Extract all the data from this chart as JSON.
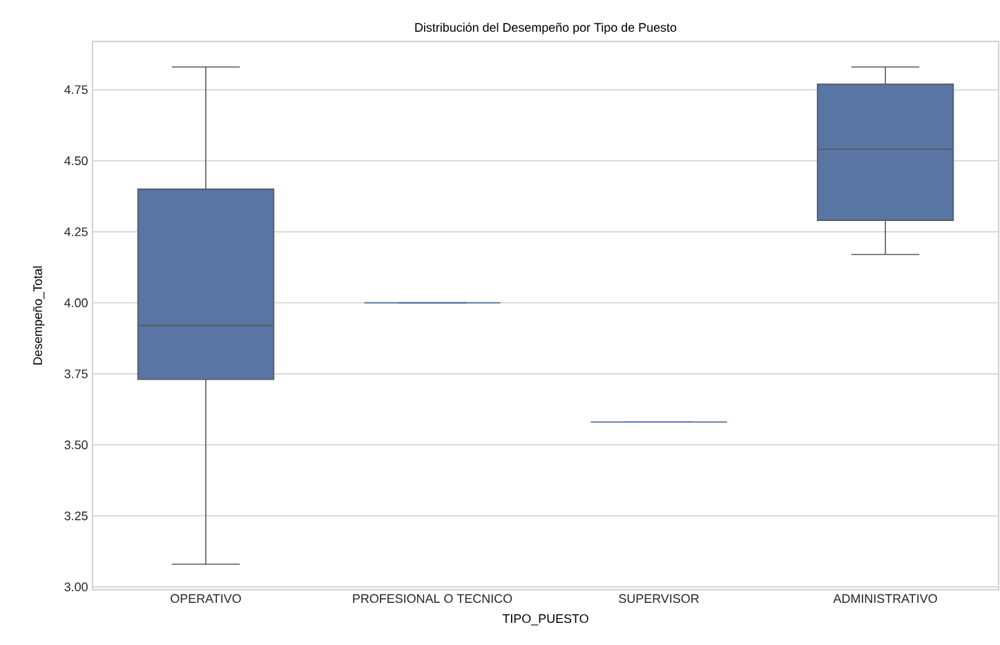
{
  "chart_data": {
    "type": "box",
    "title": "Distribución del Desempeño por Tipo de Puesto",
    "xlabel": "TIPO_PUESTO",
    "ylabel": "Desempeño_Total",
    "categories": [
      "OPERATIVO",
      "PROFESIONAL O TECNICO",
      "SUPERVISOR",
      "ADMINISTRATIVO"
    ],
    "color": "#5875a4",
    "boxes": [
      {
        "low": 3.08,
        "q1": 3.73,
        "median": 3.92,
        "q3": 4.4,
        "high": 4.83
      },
      {
        "low": 4.0,
        "q1": 4.0,
        "median": 4.0,
        "q3": 4.0,
        "high": 4.0
      },
      {
        "low": 3.58,
        "q1": 3.58,
        "median": 3.58,
        "q3": 3.58,
        "high": 3.58
      },
      {
        "low": 4.17,
        "q1": 4.29,
        "median": 4.54,
        "q3": 4.77,
        "high": 4.83
      }
    ],
    "ylim": [
      2.99,
      4.92
    ],
    "yticks": [
      {
        "value": 3.0,
        "label": "3.00"
      },
      {
        "value": 3.25,
        "label": "3.25"
      },
      {
        "value": 3.5,
        "label": "3.50"
      },
      {
        "value": 3.75,
        "label": "3.75"
      },
      {
        "value": 4.0,
        "label": "4.00"
      },
      {
        "value": 4.25,
        "label": "4.25"
      },
      {
        "value": 4.5,
        "label": "4.50"
      },
      {
        "value": 4.75,
        "label": "4.75"
      }
    ],
    "grid": "y"
  }
}
